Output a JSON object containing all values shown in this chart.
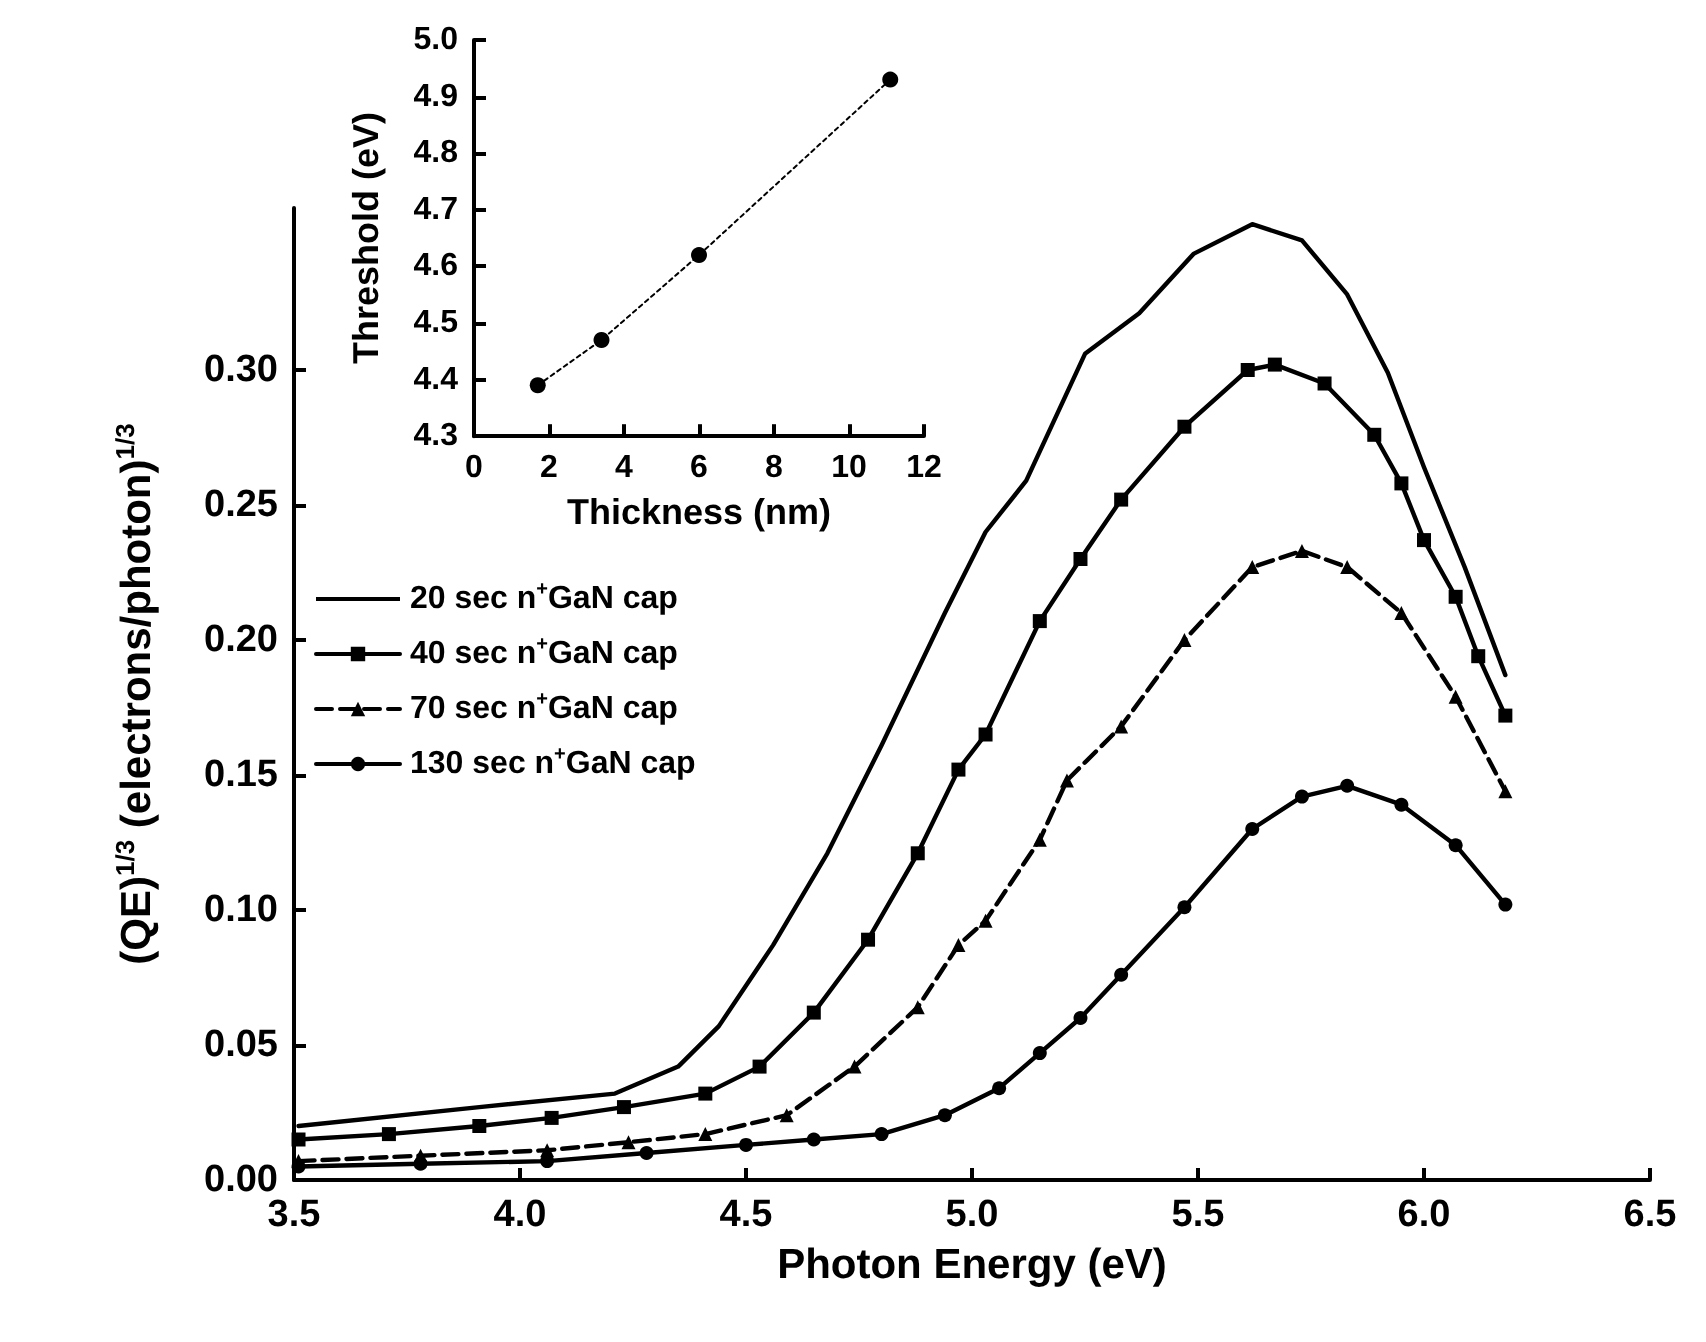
{
  "chart_data": [
    {
      "type": "line",
      "xlabel": "Photon Energy (eV)",
      "ylabel": "(QE)$^{1/3}$ (electrons/photon)$^{1/3}$",
      "xlim": [
        3.5,
        6.5
      ],
      "ylim": [
        0,
        0.36
      ],
      "xticks": [
        3.5,
        {
          "value": 4,
          "label": "4.0"
        },
        4.5,
        {
          "value": 5,
          "label": "5.0"
        },
        5.5,
        {
          "value": 6,
          "label": "6.0"
        },
        6.5
      ],
      "yticks": [
        {
          "value": 0,
          "label": "0.00"
        },
        {
          "value": 0.05,
          "label": "0.05"
        },
        {
          "value": 0.1,
          "label": "0.10"
        },
        {
          "value": 0.15,
          "label": "0.15"
        },
        {
          "value": 0.2,
          "label": "0.20"
        },
        {
          "value": 0.25,
          "label": "0.25"
        },
        {
          "value": 0.3,
          "label": "0.30"
        }
      ],
      "grid": false,
      "legend": "left",
      "series": [
        {
          "name": "20 sec n$^{+}$GaN cap",
          "color": "#000000",
          "marker": "none",
          "line_style": "solid",
          "x": [
            3.51,
            3.91,
            4.21,
            4.35,
            4.44,
            4.56,
            4.68,
            4.8,
            4.94,
            5.03,
            5.12,
            5.25,
            5.37,
            5.49,
            5.62,
            5.73,
            5.83,
            5.92,
            6.0,
            6.09,
            6.18
          ],
          "values": [
            0.02,
            0.027,
            0.032,
            0.042,
            0.057,
            0.087,
            0.121,
            0.161,
            0.21,
            0.24,
            0.259,
            0.306,
            0.321,
            0.343,
            0.354,
            0.348,
            0.328,
            0.299,
            0.264,
            0.227,
            0.187
          ]
        },
        {
          "name": "40 sec n$^{+}$GaN cap",
          "color": "#000000",
          "marker": "square",
          "line_style": "solid",
          "x": [
            3.51,
            3.71,
            3.91,
            4.07,
            4.23,
            4.41,
            4.53,
            4.65,
            4.77,
            4.88,
            4.97,
            5.03,
            5.15,
            5.24,
            5.33,
            5.47,
            5.61,
            5.67,
            5.78,
            5.89,
            5.95,
            6.0,
            6.07,
            6.12,
            6.18
          ],
          "values": [
            0.015,
            0.017,
            0.02,
            0.023,
            0.027,
            0.032,
            0.042,
            0.062,
            0.089,
            0.121,
            0.152,
            0.165,
            0.207,
            0.23,
            0.252,
            0.279,
            0.3,
            0.302,
            0.295,
            0.276,
            0.258,
            0.237,
            0.216,
            0.194,
            0.172
          ]
        },
        {
          "name": "70 sec n$^{+}$GaN cap",
          "color": "#000000",
          "marker": "triangle",
          "line_style": "dashed",
          "x": [
            3.51,
            3.78,
            4.06,
            4.24,
            4.41,
            4.59,
            4.74,
            4.88,
            4.97,
            5.03,
            5.15,
            5.21,
            5.33,
            5.47,
            5.62,
            5.73,
            5.83,
            5.95,
            6.07,
            6.18
          ],
          "values": [
            0.007,
            0.009,
            0.011,
            0.014,
            0.017,
            0.024,
            0.042,
            0.064,
            0.087,
            0.096,
            0.126,
            0.148,
            0.168,
            0.2,
            0.227,
            0.233,
            0.227,
            0.21,
            0.179,
            0.144
          ]
        },
        {
          "name": "130 sec n$^{+}$GaN cap",
          "color": "#000000",
          "marker": "circle",
          "line_style": "solid",
          "x": [
            3.51,
            3.78,
            4.06,
            4.28,
            4.5,
            4.65,
            4.8,
            4.94,
            5.06,
            5.15,
            5.24,
            5.33,
            5.47,
            5.62,
            5.73,
            5.83,
            5.95,
            6.07,
            6.18
          ],
          "values": [
            0.005,
            0.006,
            0.007,
            0.01,
            0.013,
            0.015,
            0.017,
            0.024,
            0.034,
            0.047,
            0.06,
            0.076,
            0.101,
            0.13,
            0.142,
            0.146,
            0.139,
            0.124,
            0.102
          ]
        }
      ]
    },
    {
      "type": "line",
      "xlabel": "Thickness (nm)",
      "ylabel": "Threshold (eV)",
      "xlim": [
        0,
        12
      ],
      "ylim": [
        4.3,
        5.0
      ],
      "xticks": [
        0,
        2,
        4,
        6,
        8,
        10,
        12
      ],
      "yticks": [
        4.3,
        4.4,
        4.5,
        4.6,
        4.7,
        4.8,
        4.9,
        {
          "value": 5,
          "label": "5.0"
        }
      ],
      "grid": false,
      "legend": false,
      "series": [
        {
          "color": "#000000",
          "marker": "circle",
          "line_style": "dotted",
          "x": [
            1.7,
            3.4,
            6.0,
            11.1
          ],
          "values": [
            4.39,
            4.47,
            4.62,
            4.93
          ]
        }
      ]
    }
  ]
}
